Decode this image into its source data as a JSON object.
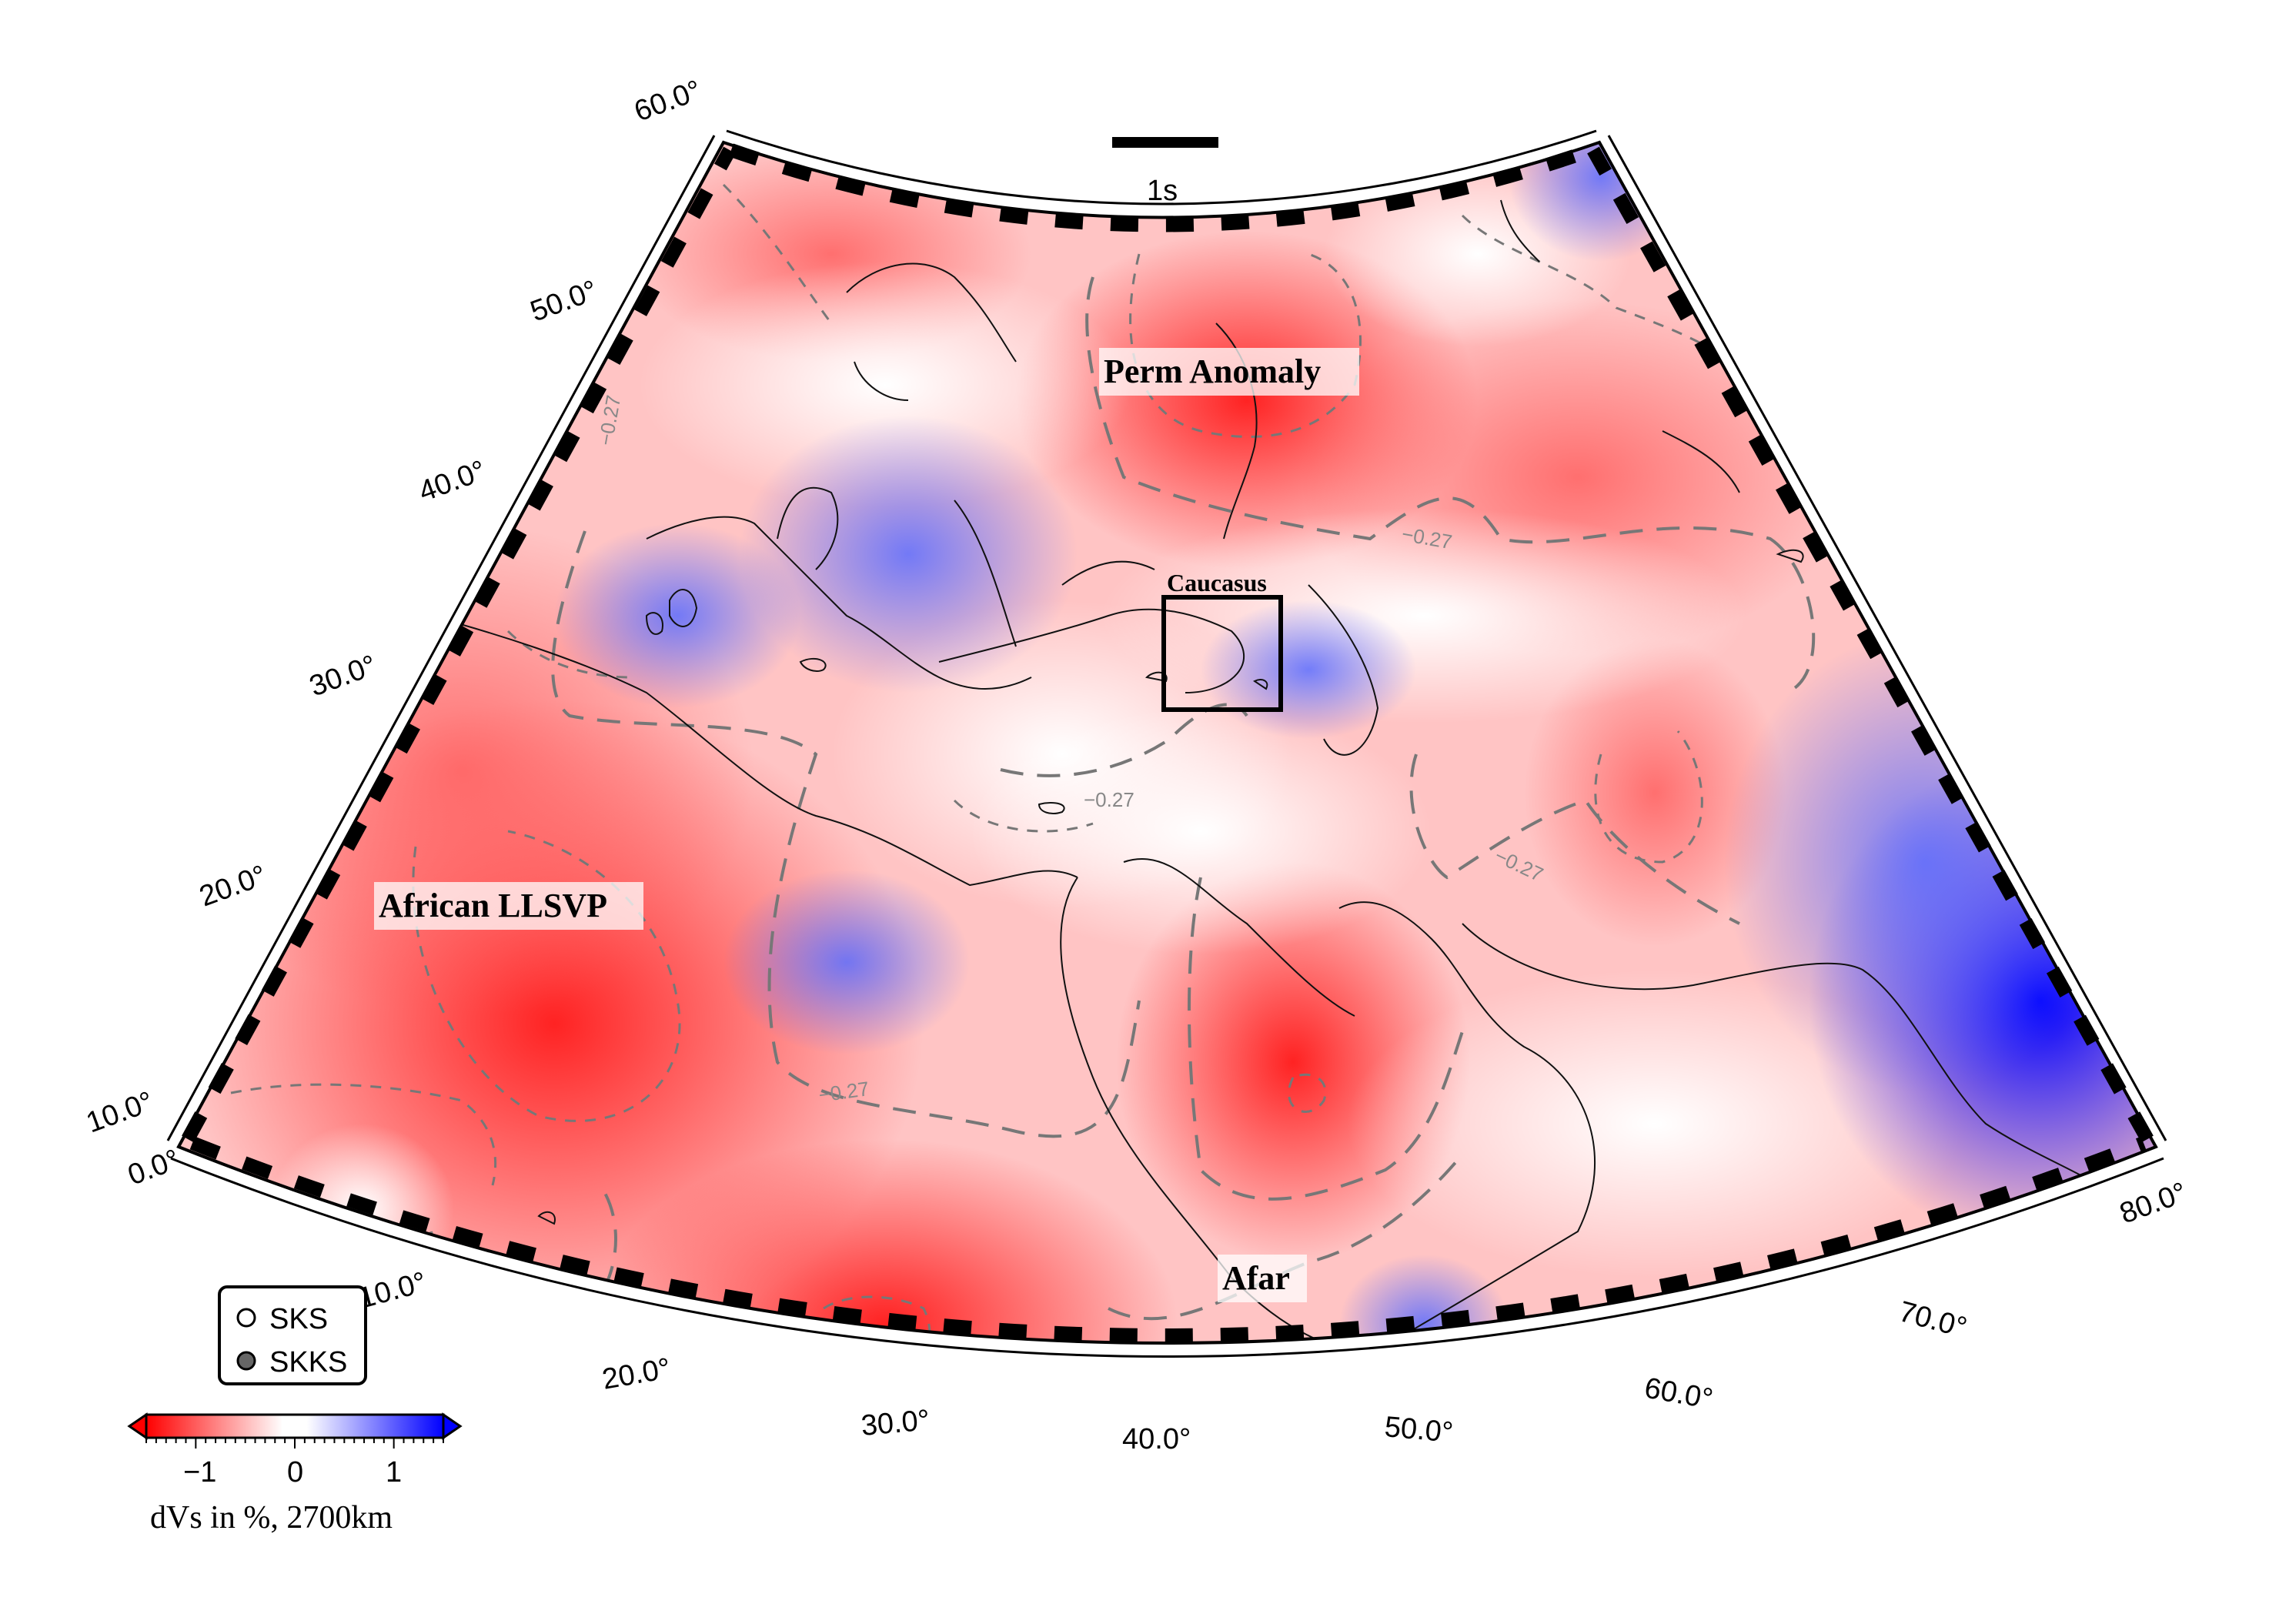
{
  "map": {
    "latitude_labels": [
      "60.0°",
      "50.0°",
      "40.0°",
      "30.0°",
      "20.0°",
      "10.0°"
    ],
    "longitude_labels": [
      "0.0°",
      "10.0°",
      "20.0°",
      "30.0°",
      "40.0°",
      "50.0°",
      "60.0°",
      "70.0°",
      "80.0°"
    ],
    "contour_value_labels": [
      "−0.27",
      "−0.27",
      "−0.27",
      "−0.27",
      "−0.27"
    ],
    "regions": [
      {
        "label": "Perm Anomaly"
      },
      {
        "label": "Caucasus"
      },
      {
        "label": "African LLSVP"
      },
      {
        "label": "Afar"
      }
    ],
    "scale_bar": {
      "label": "1s"
    }
  },
  "legend": {
    "items": [
      {
        "label": "SKS",
        "symbol": "open-circle"
      },
      {
        "label": "SKKS",
        "symbol": "filled-circle"
      }
    ]
  },
  "colorbar": {
    "tick_labels": [
      "−1",
      "0",
      "1"
    ],
    "title": "dVs in %, 2700km",
    "colors": {
      "negative": "#ff0000",
      "zero": "#ffffff",
      "positive": "#0000ff"
    }
  }
}
